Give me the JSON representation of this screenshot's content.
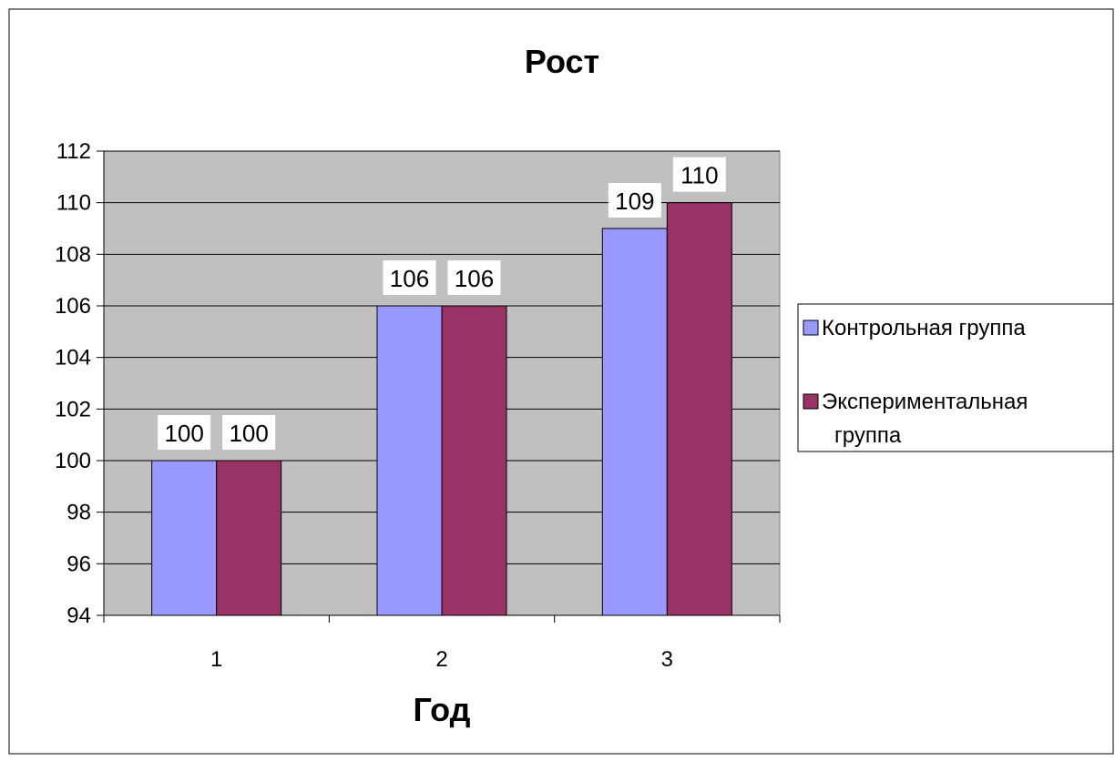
{
  "chart_data": {
    "type": "bar",
    "title": "Рост",
    "xlabel": "Год",
    "ylabel": "",
    "categories": [
      "1",
      "2",
      "3"
    ],
    "series": [
      {
        "name": "Контрольная группа",
        "values": [
          100,
          106,
          109
        ],
        "color": "#9999ff"
      },
      {
        "name": "Экспериментальная группа",
        "values": [
          100,
          106,
          110
        ],
        "color": "#993366"
      }
    ],
    "ylim": [
      94,
      112
    ],
    "yticks": [
      94,
      96,
      98,
      100,
      102,
      104,
      106,
      108,
      110,
      112
    ],
    "grid": true,
    "legend_position": "right",
    "plot_background": "#c0c0c0",
    "data_labels": true
  }
}
